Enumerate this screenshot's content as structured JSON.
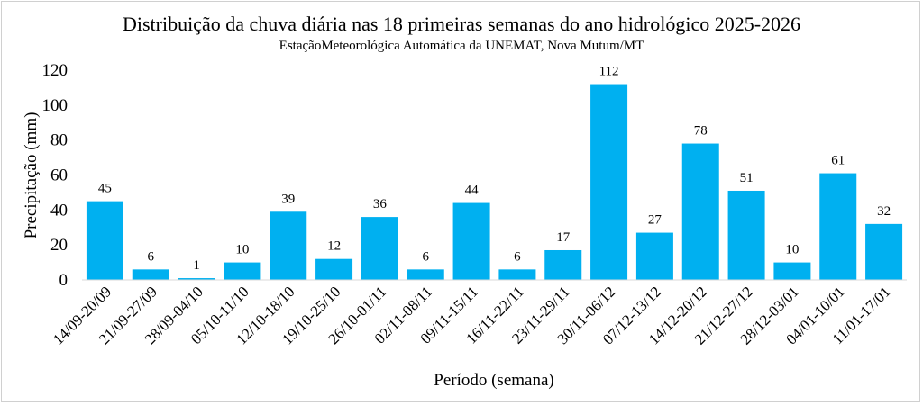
{
  "chart_data": {
    "type": "bar",
    "title": "Distribuição da chuva diária nas 18 primeiras semanas do ano hidrológico 2025-2026",
    "subtitle": "EstaçãoMeteorológica Automática da UNEMAT, Nova Mutum/MT",
    "xlabel": "Período (semana)",
    "ylabel": "Precipitação (mm)",
    "ylim": [
      0,
      120
    ],
    "yticks": [
      0,
      20,
      40,
      60,
      80,
      100,
      120
    ],
    "grid": false,
    "bar_color": "#00B0F0",
    "categories": [
      "14/09-20/09",
      "21/09-27/09",
      "28/09-04/10",
      "05/10-11/10",
      "12/10-18/10",
      "19/10-25/10",
      "26/10-01/11",
      "02/11-08/11",
      "09/11-15/11",
      "16/11-22/11",
      "23/11-29/11",
      "30/11-06/12",
      "07/12-13/12",
      "14/12-20/12",
      "21/12-27/12",
      "28/12-03/01",
      "04/01-10/01",
      "11/01-17/01"
    ],
    "values": [
      45,
      6,
      1,
      10,
      39,
      12,
      36,
      6,
      44,
      6,
      17,
      112,
      27,
      78,
      51,
      10,
      61,
      32
    ]
  }
}
